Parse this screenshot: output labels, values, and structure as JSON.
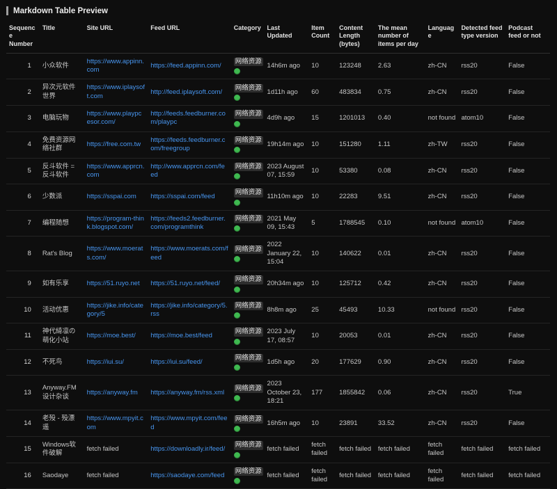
{
  "page": {
    "title": "Markdown Table Preview"
  },
  "colors": {
    "link": "#4896f0",
    "status_dot": "#3fb950",
    "background": "#0e0e0e"
  },
  "table": {
    "columns": [
      {
        "key": "seq",
        "label": "Sequence Number"
      },
      {
        "key": "title",
        "label": "Title"
      },
      {
        "key": "site_url",
        "label": "Site URL",
        "type": "link"
      },
      {
        "key": "feed_url",
        "label": "Feed URL",
        "type": "link"
      },
      {
        "key": "category",
        "label": "Category",
        "type": "category"
      },
      {
        "key": "last_updated",
        "label": "Last Updated"
      },
      {
        "key": "item_count",
        "label": "Item Count"
      },
      {
        "key": "content_length",
        "label": "Content Length (bytes)"
      },
      {
        "key": "mean_per_day",
        "label": "The mean number of items per day"
      },
      {
        "key": "language",
        "label": "Language"
      },
      {
        "key": "feed_type",
        "label": "Detected feed type version"
      },
      {
        "key": "podcast",
        "label": "Podcast feed or not"
      }
    ],
    "rows": [
      {
        "seq": "1",
        "title": "小众软件",
        "site_url": "https://www.appinn.com",
        "feed_url": "https://feed.appinn.com/",
        "category": "网络资源",
        "last_updated": "14h6m ago",
        "item_count": "10",
        "content_length": "123248",
        "mean_per_day": "2.63",
        "language": "zh-CN",
        "feed_type": "rss20",
        "podcast": "False"
      },
      {
        "seq": "2",
        "title": "异次元软件世界",
        "site_url": "https://www.iplaysoft.com",
        "feed_url": "http://feed.iplaysoft.com/",
        "category": "网络资源",
        "last_updated": "1d11h ago",
        "item_count": "60",
        "content_length": "483834",
        "mean_per_day": "0.75",
        "language": "zh-CN",
        "feed_type": "rss20",
        "podcast": "False"
      },
      {
        "seq": "3",
        "title": "电脑玩物",
        "site_url": "https://www.playpcesor.com/",
        "feed_url": "http://feeds.feedburner.com/playpc",
        "category": "网络资源",
        "last_updated": "4d9h ago",
        "item_count": "15",
        "content_length": "1201013",
        "mean_per_day": "0.40",
        "language": "not found",
        "feed_type": "atom10",
        "podcast": "False"
      },
      {
        "seq": "4",
        "title": "免费资源网络社群",
        "site_url": "https://free.com.tw",
        "feed_url": "https://feeds.feedburner.com/freegroup",
        "category": "网络资源",
        "last_updated": "19h14m ago",
        "item_count": "10",
        "content_length": "151280",
        "mean_per_day": "1.11",
        "language": "zh-TW",
        "feed_type": "rss20",
        "podcast": "False"
      },
      {
        "seq": "5",
        "title": "反斗软件 = 反斗软件",
        "site_url": "https://www.apprcn.com",
        "feed_url": "http://www.apprcn.com/feed",
        "category": "网络资源",
        "last_updated": "2023 August 07, 15:59",
        "item_count": "10",
        "content_length": "53380",
        "mean_per_day": "0.08",
        "language": "zh-CN",
        "feed_type": "rss20",
        "podcast": "False"
      },
      {
        "seq": "6",
        "title": "少数派",
        "site_url": "https://sspai.com",
        "feed_url": "https://sspai.com/feed",
        "category": "网络资源",
        "last_updated": "11h10m ago",
        "item_count": "10",
        "content_length": "22283",
        "mean_per_day": "9.51",
        "language": "zh-CN",
        "feed_type": "rss20",
        "podcast": "False"
      },
      {
        "seq": "7",
        "title": "编程随想",
        "site_url": "https://program-think.blogspot.com/",
        "feed_url": "https://feeds2.feedburner.com/programthink",
        "category": "网络资源",
        "last_updated": "2021 May 09, 15:43",
        "item_count": "5",
        "content_length": "1788545",
        "mean_per_day": "0.10",
        "language": "not found",
        "feed_type": "atom10",
        "podcast": "False"
      },
      {
        "seq": "8",
        "title": "Rat's Blog",
        "site_url": "https://www.moerats.com/",
        "feed_url": "https://www.moerats.com/feed",
        "category": "网络资源",
        "last_updated": "2022 January 22, 15:04",
        "item_count": "10",
        "content_length": "140622",
        "mean_per_day": "0.01",
        "language": "zh-CN",
        "feed_type": "rss20",
        "podcast": "False"
      },
      {
        "seq": "9",
        "title": "如有乐享",
        "site_url": "https://51.ruyo.net",
        "feed_url": "https://51.ruyo.net/feed/",
        "category": "网络资源",
        "last_updated": "20h34m ago",
        "item_count": "10",
        "content_length": "125712",
        "mean_per_day": "0.42",
        "language": "zh-CN",
        "feed_type": "rss20",
        "podcast": "False"
      },
      {
        "seq": "10",
        "title": "活动优惠",
        "site_url": "https://jike.info/category/5",
        "feed_url": "https://jike.info/category/5.rss",
        "category": "网络资源",
        "last_updated": "8h8m ago",
        "item_count": "25",
        "content_length": "45493",
        "mean_per_day": "10.33",
        "language": "not found",
        "feed_type": "rss20",
        "podcast": "False"
      },
      {
        "seq": "11",
        "title": "神代綺凛の萌化小站",
        "site_url": "https://moe.best/",
        "feed_url": "https://moe.best/feed",
        "category": "网络资源",
        "last_updated": "2023 July 17, 08:57",
        "item_count": "10",
        "content_length": "20053",
        "mean_per_day": "0.01",
        "language": "zh-CN",
        "feed_type": "rss20",
        "podcast": "False"
      },
      {
        "seq": "12",
        "title": "不死鸟",
        "site_url": "https://iui.su/",
        "feed_url": "https://iui.su/feed/",
        "category": "网络资源",
        "last_updated": "1d5h ago",
        "item_count": "20",
        "content_length": "177629",
        "mean_per_day": "0.90",
        "language": "zh-CN",
        "feed_type": "rss20",
        "podcast": "False"
      },
      {
        "seq": "13",
        "title": "Anyway.FM 设计杂谈",
        "site_url": "https://anyway.fm",
        "feed_url": "https://anyway.fm/rss.xml",
        "category": "网络资源",
        "last_updated": "2023 October 23, 18:21",
        "item_count": "177",
        "content_length": "1855842",
        "mean_per_day": "0.06",
        "language": "zh-CN",
        "feed_type": "rss20",
        "podcast": "True"
      },
      {
        "seq": "14",
        "title": "老殁 - 殁漂遥",
        "site_url": "https://www.mpyit.com",
        "feed_url": "https://www.mpyit.com/feed",
        "category": "网络资源",
        "last_updated": "16h5m ago",
        "item_count": "10",
        "content_length": "23891",
        "mean_per_day": "33.52",
        "language": "zh-CN",
        "feed_type": "rss20",
        "podcast": "False"
      },
      {
        "seq": "15",
        "title": "Windows软件破解",
        "site_url": "fetch failed",
        "feed_url": "https://downloadly.ir/feed/",
        "category": "网络资源",
        "last_updated": "fetch failed",
        "item_count": "fetch failed",
        "content_length": "fetch failed",
        "mean_per_day": "fetch failed",
        "language": "fetch failed",
        "feed_type": "fetch failed",
        "podcast": "fetch failed"
      },
      {
        "seq": "16",
        "title": "Saodaye",
        "site_url": "fetch failed",
        "feed_url": "https://saodaye.com/feed",
        "category": "网络资源",
        "last_updated": "fetch failed",
        "item_count": "fetch failed",
        "content_length": "fetch failed",
        "mean_per_day": "fetch failed",
        "language": "fetch failed",
        "feed_type": "fetch failed",
        "podcast": "fetch failed"
      }
    ]
  }
}
